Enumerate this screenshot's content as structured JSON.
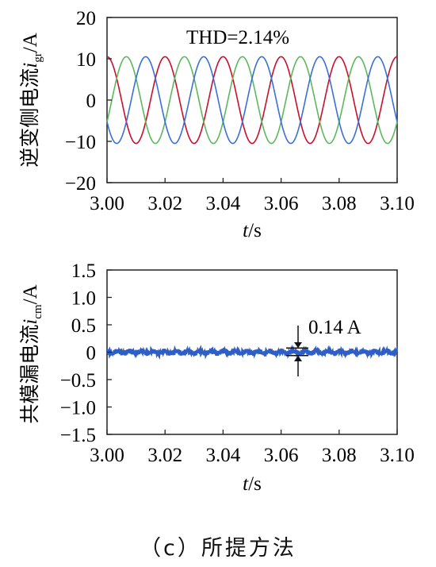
{
  "chart_data": [
    {
      "type": "line",
      "ylabel_main": "逆变侧电流",
      "ylabel_symbol": "i",
      "ylabel_sub": "gr",
      "ylabel_unit": "/A",
      "xlabel_symbol": "t",
      "xlabel_unit": "/s",
      "xlim": [
        3.0,
        3.1
      ],
      "ylim": [
        -20,
        20
      ],
      "xticks": [
        "3.00",
        "3.02",
        "3.04",
        "3.06",
        "3.08",
        "3.10"
      ],
      "yticks": [
        "20",
        "10",
        "0",
        "−10",
        "−20"
      ],
      "annotation": "THD=2.14%",
      "series": [
        {
          "color": "#c8102e",
          "amplitude": 10.5,
          "frequency_hz": 50,
          "phase_deg": 90
        },
        {
          "color": "#5cb85c",
          "amplitude": 10.5,
          "frequency_hz": 50,
          "phase_deg": -30
        },
        {
          "color": "#3a6fd8",
          "amplitude": 10.5,
          "frequency_hz": 50,
          "phase_deg": 210
        }
      ]
    },
    {
      "type": "line",
      "ylabel_main": "共模漏电流",
      "ylabel_symbol": "i",
      "ylabel_sub": "cm",
      "ylabel_unit": "/A",
      "xlabel_symbol": "t",
      "xlabel_unit": "/s",
      "xlim": [
        3.0,
        3.1
      ],
      "ylim": [
        -1.5,
        1.5
      ],
      "xticks": [
        "3.00",
        "3.02",
        "3.04",
        "3.06",
        "3.08",
        "3.10"
      ],
      "yticks": [
        "1.5",
        "1.0",
        "0.5",
        "0",
        "−0.5",
        "−1.0",
        "−1.5"
      ],
      "annotation": "0.14 A",
      "annotation_x": 3.066,
      "annotation_span": [
        -0.07,
        0.07
      ],
      "series": [
        {
          "color": "#2f5fc4",
          "amplitude": 0.07
        }
      ]
    }
  ],
  "caption": "（c）所提方法"
}
